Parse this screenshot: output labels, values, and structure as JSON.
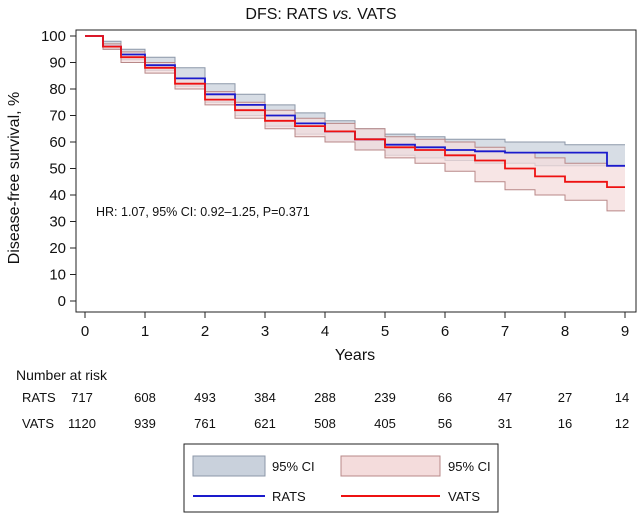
{
  "chart_data": {
    "type": "line",
    "title_main": "DFS: RATS ",
    "title_italic": "vs.",
    "title_end": " VATS",
    "xlabel": "Years",
    "ylabel": "Disease-free survival, %",
    "xlim": [
      0,
      9
    ],
    "ylim": [
      0,
      100
    ],
    "x_ticks": [
      0,
      1,
      2,
      3,
      4,
      5,
      6,
      7,
      8,
      9
    ],
    "y_ticks": [
      0,
      10,
      20,
      30,
      40,
      50,
      60,
      70,
      80,
      90,
      100
    ],
    "annotation": "HR: 1.07, 95% CI: 0.92–1.25, P=0.371",
    "series": [
      {
        "name": "RATS",
        "color": "#1a1acc",
        "ci_fill": "#c9d1dc",
        "ci_stroke": "#8c97a8",
        "x": [
          0,
          0.3,
          0.6,
          1.0,
          1.5,
          2.0,
          2.5,
          3.0,
          3.5,
          4.0,
          4.5,
          5.0,
          5.5,
          6.0,
          6.5,
          7.0,
          7.5,
          8.0,
          8.5,
          8.7,
          9.0
        ],
        "y": [
          100,
          96,
          93,
          89,
          84,
          78,
          74,
          70,
          67,
          64,
          61,
          59,
          58,
          57,
          56.5,
          56,
          56,
          56,
          56,
          51,
          51
        ],
        "lower": [
          100,
          95,
          91,
          87,
          81,
          75,
          70,
          66,
          63,
          60,
          57,
          55,
          54,
          53,
          52,
          52,
          51,
          51,
          51,
          51,
          51
        ],
        "upper": [
          100,
          98,
          95,
          92,
          88,
          82,
          78,
          74,
          71,
          68,
          65,
          63,
          62,
          61,
          61,
          60,
          60,
          59,
          59,
          59,
          59
        ]
      },
      {
        "name": "VATS",
        "color": "#ee1111",
        "ci_fill": "#f4dcdc",
        "ci_stroke": "#b88888",
        "x": [
          0,
          0.3,
          0.6,
          1.0,
          1.5,
          2.0,
          2.5,
          3.0,
          3.5,
          4.0,
          4.5,
          5.0,
          5.5,
          6.0,
          6.5,
          7.0,
          7.5,
          8.0,
          8.5,
          8.7,
          9.0
        ],
        "y": [
          100,
          96,
          92,
          88,
          82,
          76,
          72,
          68,
          66,
          64,
          61,
          58,
          57,
          55,
          53,
          50,
          47,
          45,
          45,
          43,
          43
        ],
        "lower": [
          100,
          95,
          90,
          86,
          80,
          74,
          69,
          65,
          62,
          60,
          57,
          54,
          52,
          49,
          45,
          42,
          40,
          38,
          38,
          34,
          34
        ],
        "upper": [
          100,
          97,
          94,
          90,
          84,
          79,
          75,
          72,
          69,
          67,
          65,
          62,
          61,
          60,
          58,
          56,
          54,
          52,
          52,
          51,
          51
        ]
      }
    ]
  },
  "risk_table": {
    "title": "Number at risk",
    "rows": [
      {
        "label": "RATS",
        "values": [
          "717",
          "608",
          "493",
          "384",
          "288",
          "239",
          "66",
          "47",
          "27",
          "14"
        ]
      },
      {
        "label": "VATS",
        "values": [
          "1120",
          "939",
          "761",
          "621",
          "508",
          "405",
          "56",
          "31",
          "16",
          "12"
        ]
      }
    ]
  },
  "legend": {
    "ci_rats_label": "95% CI",
    "ci_vats_label": "95% CI",
    "rats_label": "RATS",
    "vats_label": "VATS"
  }
}
